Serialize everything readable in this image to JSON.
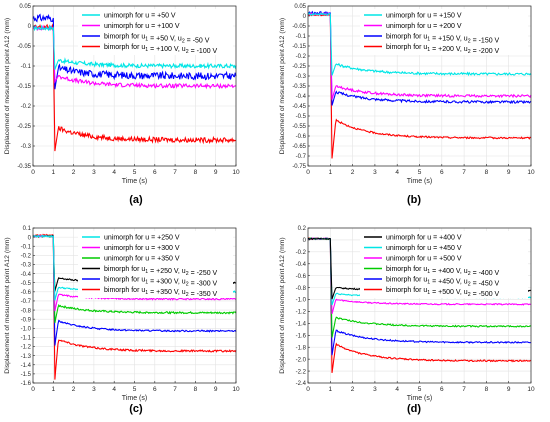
{
  "chart_data": [
    {
      "type": "line",
      "panel_label": "(a)",
      "xlabel": "Time (s)",
      "ylabel": "Displacement of mesurement point A12 (mm)",
      "xlim": [
        0,
        10
      ],
      "ylim": [
        -0.35,
        0.05
      ],
      "xticks": [
        0,
        1,
        2,
        3,
        4,
        5,
        6,
        7,
        8,
        9,
        10
      ],
      "yticks": [
        0.05,
        0,
        -0.05,
        -0.1,
        -0.15,
        -0.2,
        -0.25,
        -0.3,
        -0.35
      ],
      "ytick_labels": [
        "0.05",
        "0",
        "-0.05",
        "-0.1",
        "-0.15",
        "-0.2",
        "-0.25",
        "-0.3",
        "-0.35"
      ],
      "grid": true,
      "legend_position": "top-right",
      "series": [
        {
          "name": "unimorph for u = +50 V",
          "color": "#00e6e6",
          "pre": -0.005,
          "spike": -0.11,
          "peak": -0.085,
          "final": -0.1,
          "noise": 0.005
        },
        {
          "name": "unimorph for u = +100 V",
          "color": "#ff00ff",
          "pre": -0.005,
          "spike": -0.14,
          "peak": -0.125,
          "final": -0.15,
          "noise": 0.005
        },
        {
          "name": "bimorph for u1 = +50 V, u2 = -50 V",
          "color": "#0000ff",
          "pre": 0.02,
          "spike": -0.16,
          "peak": -0.105,
          "final": -0.125,
          "noise": 0.009
        },
        {
          "name": "bimorph for u1 = +100 V, u2 = -100 V",
          "color": "#ff0000",
          "pre": -0.003,
          "spike": -0.315,
          "peak": -0.255,
          "final": -0.285,
          "noise": 0.006
        }
      ]
    },
    {
      "type": "line",
      "panel_label": "(b)",
      "xlabel": "Time (s)",
      "ylabel": "Displacement of mesurement point A12 (mm)",
      "xlim": [
        0,
        10
      ],
      "ylim": [
        -0.75,
        0.05
      ],
      "xticks": [
        0,
        1,
        2,
        3,
        4,
        5,
        6,
        7,
        8,
        9,
        10
      ],
      "yticks": [
        0.05,
        0,
        -0.05,
        -0.1,
        -0.15,
        -0.2,
        -0.25,
        -0.3,
        -0.35,
        -0.4,
        -0.45,
        -0.5,
        -0.55,
        -0.6,
        -0.65,
        -0.7,
        -0.75
      ],
      "ytick_labels": [
        "0.05",
        "0",
        "-0.05",
        "-0.1",
        "-0.15",
        "-0.2",
        "-0.25",
        "-0.3",
        "-0.35",
        "-0.4",
        "-0.45",
        "-0.5",
        "-0.55",
        "-0.6",
        "-0.65",
        "-0.7",
        "-0.75"
      ],
      "grid": true,
      "legend_position": "top-right",
      "series": [
        {
          "name": "unimorph for u = +150 V",
          "color": "#00e6e6",
          "pre": 0.01,
          "spike": -0.3,
          "peak": -0.24,
          "final": -0.29,
          "noise": 0.006
        },
        {
          "name": "unimorph for u = +200 V",
          "color": "#ff00ff",
          "pre": 0.01,
          "spike": -0.42,
          "peak": -0.35,
          "final": -0.4,
          "noise": 0.006
        },
        {
          "name": "bimorph for u1 = +150 V, u2 = -150 V",
          "color": "#0000ff",
          "pre": 0.015,
          "spike": -0.45,
          "peak": -0.38,
          "final": -0.43,
          "noise": 0.006
        },
        {
          "name": "bimorph for u1 = +200 V, u2 = -200 V",
          "color": "#ff0000",
          "pre": 0.005,
          "spike": -0.72,
          "peak": -0.52,
          "final": -0.61,
          "noise": 0.004
        }
      ]
    },
    {
      "type": "line",
      "panel_label": "(c)",
      "xlabel": "Time (s)",
      "ylabel": "Displacement of mesurement point A12 (mm)",
      "xlim": [
        0,
        10
      ],
      "ylim": [
        -1.6,
        0.1
      ],
      "xticks": [
        0,
        1,
        2,
        3,
        4,
        5,
        6,
        7,
        8,
        9,
        10
      ],
      "yticks": [
        0.1,
        0,
        -0.1,
        -0.2,
        -0.3,
        -0.4,
        -0.5,
        -0.6,
        -0.7,
        -0.8,
        -0.9,
        -1.0,
        -1.1,
        -1.2,
        -1.3,
        -1.4,
        -1.5,
        -1.6
      ],
      "ytick_labels": [
        "0.1",
        "0",
        "-0.1",
        "-0.2",
        "-0.3",
        "-0.4",
        "-0.5",
        "-0.6",
        "-0.7",
        "-0.8",
        "-0.9",
        "-1.0",
        "-1.1",
        "-1.2",
        "-1.3",
        "-1.4",
        "-1.5",
        "-1.6"
      ],
      "grid": true,
      "legend_position": "top-right",
      "series": [
        {
          "name": "unimorph for u = +250 V",
          "color": "#00e6e6",
          "pre": 0.01,
          "spike": -0.7,
          "peak": -0.55,
          "final": -0.6,
          "noise": 0.008
        },
        {
          "name": "unimorph for u = +300 V",
          "color": "#ff00ff",
          "pre": 0.01,
          "spike": -0.82,
          "peak": -0.63,
          "final": -0.68,
          "noise": 0.008
        },
        {
          "name": "unimorph for u = +350 V",
          "color": "#00cc00",
          "pre": 0.01,
          "spike": -0.95,
          "peak": -0.75,
          "final": -0.83,
          "noise": 0.01
        },
        {
          "name": "bimorph for u1 = +250 V, u2 = -250 V",
          "color": "#000000",
          "pre": 0.01,
          "spike": -0.6,
          "peak": -0.45,
          "final": -0.5,
          "noise": 0.008
        },
        {
          "name": "bimorph for u1 = +300 V, u2 = -300 V",
          "color": "#0000ff",
          "pre": 0.01,
          "spike": -1.2,
          "peak": -0.92,
          "final": -1.03,
          "noise": 0.008
        },
        {
          "name": "bimorph for u1 = +350 V, u2 = -350 V",
          "color": "#ff0000",
          "pre": 0.02,
          "spike": -1.58,
          "peak": -1.12,
          "final": -1.25,
          "noise": 0.01
        }
      ]
    },
    {
      "type": "line",
      "panel_label": "(d)",
      "xlabel": "Time (s)",
      "ylabel": "Displacement of mesurement point A12 (mm)",
      "xlim": [
        0,
        10
      ],
      "ylim": [
        -2.4,
        0.2
      ],
      "xticks": [
        0,
        1,
        2,
        3,
        4,
        5,
        6,
        7,
        8,
        9,
        10
      ],
      "yticks": [
        0.2,
        0,
        -0.2,
        -0.4,
        -0.6,
        -0.8,
        -1.0,
        -1.2,
        -1.4,
        -1.6,
        -1.8,
        -2.0,
        -2.2,
        -2.4
      ],
      "ytick_labels": [
        "0.2",
        "0",
        "-0.2",
        "-0.4",
        "-0.6",
        "-0.8",
        "-1.0",
        "-1.2",
        "-1.4",
        "-1.6",
        "-1.8",
        "-2.0",
        "-2.2",
        "-2.4"
      ],
      "grid": true,
      "legend_position": "top-right",
      "series": [
        {
          "name": "unimorph for u = +400 V",
          "color": "#000000",
          "pre": 0.02,
          "spike": -1.0,
          "peak": -0.8,
          "final": -0.85,
          "noise": 0.01
        },
        {
          "name": "unimorph for u = +450 V",
          "color": "#00e6e6",
          "pre": 0.02,
          "spike": -1.1,
          "peak": -0.9,
          "final": -0.96,
          "noise": 0.01
        },
        {
          "name": "unimorph for u = +500 V",
          "color": "#ff00ff",
          "pre": 0.02,
          "spike": -1.25,
          "peak": -1.0,
          "final": -1.08,
          "noise": 0.01
        },
        {
          "name": "bimorph for u1 = +400 V, u2 = -400 V",
          "color": "#00cc00",
          "pre": 0.02,
          "spike": -1.65,
          "peak": -1.3,
          "final": -1.45,
          "noise": 0.012
        },
        {
          "name": "bimorph for u1 = +450 V, u2 = -450 V",
          "color": "#0000ff",
          "pre": 0.02,
          "spike": -1.95,
          "peak": -1.52,
          "final": -1.72,
          "noise": 0.012
        },
        {
          "name": "bimorph for u1 = +500 V, u2 = -500 V",
          "color": "#ff0000",
          "pre": 0.02,
          "spike": -2.25,
          "peak": -1.75,
          "final": -2.03,
          "noise": 0.012
        }
      ]
    }
  ]
}
